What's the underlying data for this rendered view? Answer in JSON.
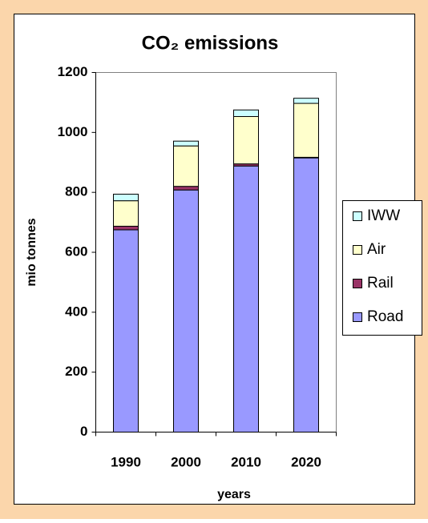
{
  "chart_data": {
    "type": "stacked_bar",
    "title": "CO₂ emissions",
    "x_label": "years",
    "y_label": "mio tonnes",
    "categories": [
      "1990",
      "2000",
      "2010",
      "2020"
    ],
    "series": [
      {
        "name": "Road",
        "color": "#9999ff",
        "values": [
          675,
          808,
          888,
          915
        ]
      },
      {
        "name": "Rail",
        "color": "#993366",
        "values": [
          12,
          12,
          7,
          2
        ]
      },
      {
        "name": "Air",
        "color": "#ffffcc",
        "values": [
          85,
          135,
          158,
          180
        ]
      },
      {
        "name": "IWW",
        "color": "#ccffff",
        "values": [
          22,
          16,
          22,
          17
        ]
      }
    ],
    "ylim": [
      0,
      1200
    ],
    "yticks": [
      0,
      200,
      400,
      600,
      800,
      1000,
      1200
    ],
    "grid": false,
    "legend": "right"
  }
}
